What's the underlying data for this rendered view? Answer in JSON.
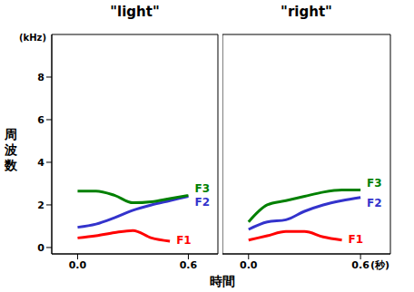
{
  "chart_data": [
    {
      "type": "line",
      "title": "\"light\"",
      "x_label": "時間",
      "y_label": "周波数",
      "annotations": [
        "(kHz)"
      ],
      "x": [
        0,
        0.1,
        0.2,
        0.3,
        0.4,
        0.5,
        0.6
      ],
      "xlim": [
        -0.14,
        0.76
      ],
      "xticks": [
        {
          "value": 0,
          "label": "0.0"
        },
        0.6
      ],
      "ylim": [
        -0.3,
        10
      ],
      "yticks": [
        0,
        2,
        4,
        6,
        8
      ],
      "series": [
        {
          "name": "F1",
          "color": "#ff0000",
          "values": [
            0.45,
            0.55,
            0.7,
            0.8,
            0.45,
            0.3,
            null
          ]
        },
        {
          "name": "F2",
          "color": "#3333cc",
          "values": [
            0.95,
            1.1,
            1.4,
            1.75,
            2.0,
            2.2,
            2.4
          ]
        },
        {
          "name": "F3",
          "color": "#008000",
          "values": [
            2.65,
            2.65,
            2.45,
            2.1,
            2.15,
            2.3,
            2.45
          ]
        }
      ]
    },
    {
      "type": "line",
      "title": "\"right\"",
      "annotations": [
        "(秒)"
      ],
      "tick_labels": "x",
      "x": [
        0,
        0.1,
        0.2,
        0.3,
        0.4,
        0.5,
        0.6
      ],
      "xlim": [
        -0.14,
        0.76
      ],
      "xticks": [
        {
          "value": 0,
          "label": "0.0"
        },
        0.6
      ],
      "ylim": [
        -0.3,
        10
      ],
      "series": [
        {
          "name": "F1",
          "color": "#ff0000",
          "values": [
            0.35,
            0.55,
            0.75,
            0.75,
            0.5,
            0.35,
            null
          ]
        },
        {
          "name": "F2",
          "color": "#3333cc",
          "values": [
            0.85,
            1.2,
            1.3,
            1.7,
            2.0,
            2.2,
            2.35
          ]
        },
        {
          "name": "F3",
          "color": "#008000",
          "values": [
            1.2,
            2.0,
            2.2,
            2.4,
            2.6,
            2.7,
            2.7
          ]
        }
      ]
    }
  ]
}
